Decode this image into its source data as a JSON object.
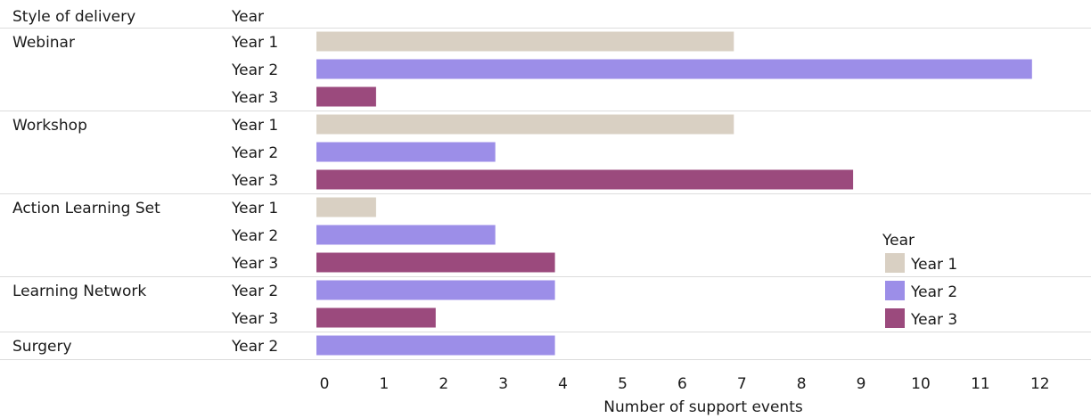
{
  "chart_data": {
    "type": "bar",
    "orientation": "horizontal",
    "column_headers": [
      "Style of delivery",
      "Year"
    ],
    "xlabel": "Number of support events",
    "xlim": [
      0,
      13
    ],
    "xticks": [
      0,
      1,
      2,
      3,
      4,
      5,
      6,
      7,
      8,
      9,
      10,
      11,
      12,
      13
    ],
    "grid": false,
    "legend": {
      "title": "Year",
      "placement": "right",
      "entries": [
        {
          "label": "Year 1",
          "color": "#d9d0c3"
        },
        {
          "label": "Year 2",
          "color": "#9c8ee8"
        },
        {
          "label": "Year 3",
          "color": "#9b4a7d"
        }
      ]
    },
    "groups": [
      {
        "name": "Webinar",
        "bars": [
          {
            "year": "Year 1",
            "value": 7
          },
          {
            "year": "Year 2",
            "value": 12
          },
          {
            "year": "Year 3",
            "value": 1
          }
        ]
      },
      {
        "name": "Workshop",
        "bars": [
          {
            "year": "Year 1",
            "value": 7
          },
          {
            "year": "Year 2",
            "value": 3
          },
          {
            "year": "Year 3",
            "value": 9
          }
        ]
      },
      {
        "name": "Action Learning Set",
        "bars": [
          {
            "year": "Year 1",
            "value": 1
          },
          {
            "year": "Year 2",
            "value": 3
          },
          {
            "year": "Year 3",
            "value": 4
          }
        ]
      },
      {
        "name": "Learning Network",
        "bars": [
          {
            "year": "Year 2",
            "value": 4
          },
          {
            "year": "Year 3",
            "value": 2
          }
        ]
      },
      {
        "name": "Surgery",
        "bars": [
          {
            "year": "Year 2",
            "value": 4
          }
        ]
      }
    ]
  }
}
